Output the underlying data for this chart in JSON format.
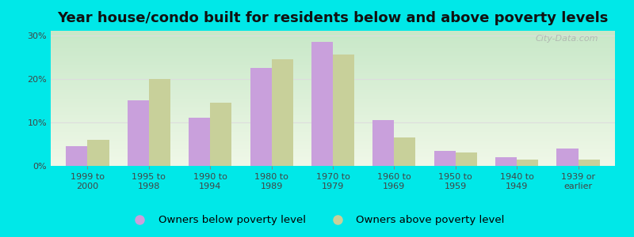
{
  "title": "Year house/condo built for residents below and above poverty levels",
  "categories": [
    "1999 to\n2000",
    "1995 to\n1998",
    "1990 to\n1994",
    "1980 to\n1989",
    "1970 to\n1979",
    "1960 to\n1969",
    "1950 to\n1959",
    "1940 to\n1949",
    "1939 or\nearlier"
  ],
  "below_poverty": [
    4.5,
    15.0,
    11.0,
    22.5,
    28.5,
    10.5,
    3.5,
    2.0,
    4.0
  ],
  "above_poverty": [
    6.0,
    20.0,
    14.5,
    24.5,
    25.5,
    6.5,
    3.0,
    1.5,
    1.5
  ],
  "bar_color_below": "#c9a0dc",
  "bar_color_above": "#c8d09a",
  "grad_top_color": "#c8e8c8",
  "grad_bot_color": "#f0f8e8",
  "outer_background": "#00e8e8",
  "ylim_max": 31,
  "yticks": [
    0,
    10,
    20,
    30
  ],
  "ytick_labels": [
    "0%",
    "10%",
    "20%",
    "30%"
  ],
  "legend_below": "Owners below poverty level",
  "legend_above": "Owners above poverty level",
  "title_fontsize": 13,
  "tick_fontsize": 8,
  "legend_fontsize": 9.5,
  "bar_width": 0.35,
  "watermark": "City-Data.com"
}
